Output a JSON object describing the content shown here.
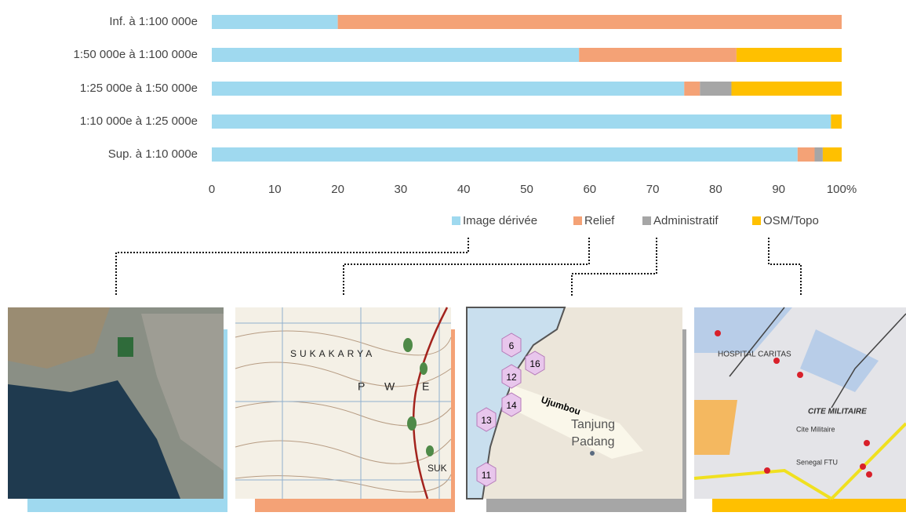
{
  "chart_data": {
    "type": "stacked_barh",
    "categories": [
      "Inf. à 1:100 000e",
      "1:50 000e à 1:100 000e",
      "1:25 000e à 1:50 000e",
      "1:10 000e à 1:25 000e",
      "Sup. à 1:10 000e"
    ],
    "series": [
      {
        "name": "Image dérivée",
        "color": "#9fd9ef",
        "values": [
          20,
          58.3,
          75,
          98.3,
          93
        ]
      },
      {
        "name": "Relief",
        "color": "#f4a276",
        "values": [
          80,
          25,
          2.5,
          0,
          2.7
        ]
      },
      {
        "name": "Administratif",
        "color": "#a6a6a6",
        "values": [
          0,
          0,
          5,
          0,
          1.3
        ]
      },
      {
        "name": "OSM/Topo",
        "color": "#ffc000",
        "values": [
          0,
          16.7,
          17.5,
          1.7,
          3
        ]
      }
    ],
    "xlim": [
      0,
      100
    ],
    "xticks": [
      0,
      10,
      20,
      30,
      40,
      50,
      60,
      70,
      80,
      90,
      {
        "value": 100,
        "label": "100%"
      }
    ],
    "grid": false,
    "legend": "bottom-right"
  },
  "panels": {
    "topo": [
      "SUKAKARYA",
      "P",
      "W",
      "E",
      "SUK"
    ],
    "grid": [
      "6",
      "16",
      "12",
      "14",
      "13",
      "11",
      "Ujumbou",
      "Tanjung",
      "Padang"
    ],
    "street": [
      "HOSPITAL CARITAS",
      "CITE MILITAIRE",
      "Cite Militaire",
      "Senegal FTU"
    ]
  }
}
